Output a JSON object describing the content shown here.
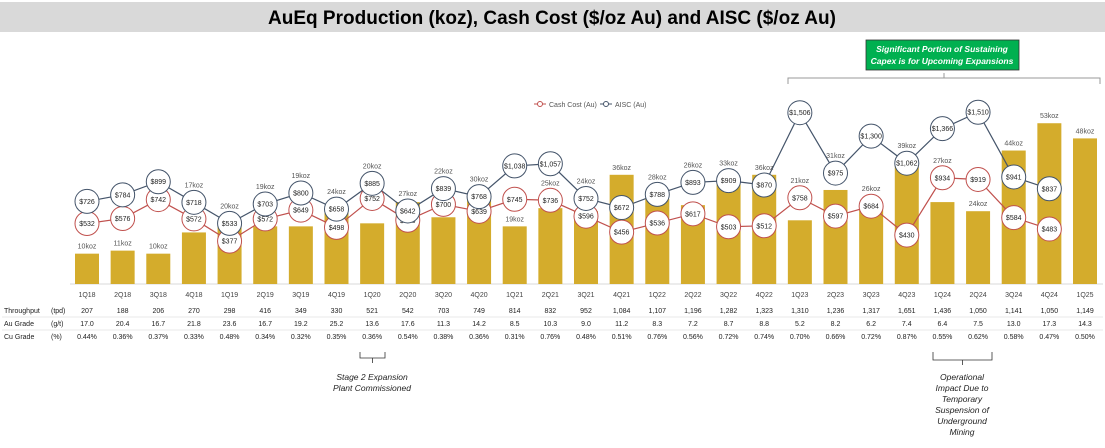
{
  "title": "AuEq Production (koz), Cash Cost ($/oz Au) and AISC ($/oz Au)",
  "colors": {
    "bar": "#D4AC2C",
    "cash_cost": "#C0504D",
    "aisc": "#44546A",
    "callout": "#00B050",
    "title_bg": "#D9D9D9"
  },
  "callout_top": {
    "line1": "Significant Portion of Sustaining",
    "line2": "Capex is for Upcoming Expansions"
  },
  "annotation_stage2": {
    "line1": "Stage 2 Expansion",
    "line2": "Plant Commissioned"
  },
  "annotation_operational": {
    "lines": [
      "Operational",
      "Impact Due to",
      "Temporary",
      "Suspension of",
      "Underground",
      "Mining"
    ]
  },
  "table": {
    "rows": [
      {
        "label": "Throughput",
        "unit": "(tpd)",
        "values": [
          "207",
          "188",
          "206",
          "270",
          "298",
          "416",
          "349",
          "330",
          "521",
          "542",
          "703",
          "749",
          "814",
          "832",
          "952",
          "1,084",
          "1,107",
          "1,196",
          "1,282",
          "1,323",
          "1,310",
          "1,236",
          "1,317",
          "1,651",
          "1,436",
          "1,050",
          "1,141",
          "1,050",
          "1,149"
        ]
      },
      {
        "label": "Au Grade",
        "unit": "(g/t)",
        "values": [
          "17.0",
          "20.4",
          "16.7",
          "21.8",
          "23.6",
          "16.7",
          "19.2",
          "25.2",
          "13.6",
          "17.6",
          "11.3",
          "14.2",
          "8.5",
          "10.3",
          "9.0",
          "11.2",
          "8.3",
          "7.2",
          "8.7",
          "8.8",
          "5.2",
          "8.2",
          "6.2",
          "7.4",
          "6.4",
          "7.5",
          "13.0",
          "17.3",
          "14.3"
        ]
      },
      {
        "label": "Cu Grade",
        "unit": "(%)",
        "values": [
          "0.44%",
          "0.36%",
          "0.37%",
          "0.33%",
          "0.48%",
          "0.34%",
          "0.32%",
          "0.35%",
          "0.36%",
          "0.54%",
          "0.38%",
          "0.36%",
          "0.31%",
          "0.76%",
          "0.48%",
          "0.51%",
          "0.76%",
          "0.56%",
          "0.72%",
          "0.74%",
          "0.70%",
          "0.66%",
          "0.72%",
          "0.87%",
          "0.55%",
          "0.62%",
          "0.58%",
          "0.47%",
          "0.50%"
        ]
      }
    ]
  },
  "chart_data": {
    "type": "bar+line",
    "title": "AuEq Production (koz), Cash Cost ($/oz Au) and AISC ($/oz Au)",
    "categories": [
      "1Q18",
      "2Q18",
      "3Q18",
      "4Q18",
      "1Q19",
      "2Q19",
      "3Q19",
      "4Q19",
      "1Q20",
      "2Q20",
      "3Q20",
      "4Q20",
      "1Q21",
      "2Q21",
      "3Q21",
      "4Q21",
      "1Q22",
      "2Q22",
      "3Q22",
      "4Q22",
      "1Q23",
      "2Q23",
      "3Q23",
      "4Q23",
      "1Q24",
      "2Q24",
      "3Q24",
      "4Q24",
      "1Q25"
    ],
    "bar_series": {
      "unit": "koz",
      "values": [
        10,
        11,
        10,
        17,
        20,
        19,
        19,
        24,
        20,
        27,
        22,
        30,
        19,
        25,
        24,
        36,
        28,
        26,
        33,
        36,
        21,
        31,
        26,
        39,
        27,
        24,
        44,
        53,
        48
      ]
    },
    "line_series": [
      {
        "name": "Cash Cost (Au)",
        "values": [
          532,
          576,
          742,
          572,
          377,
          572,
          649,
          498,
          752,
          560,
          700,
          639,
          745,
          736,
          596,
          456,
          536,
          617,
          503,
          512,
          758,
          597,
          684,
          430,
          934,
          919,
          584,
          483,
          null
        ]
      },
      {
        "name": "AISC (Au)",
        "values": [
          726,
          784,
          899,
          718,
          533,
          703,
          800,
          658,
          885,
          642,
          839,
          768,
          1038,
          1057,
          752,
          672,
          788,
          893,
          909,
          870,
          1506,
          975,
          1300,
          1062,
          1366,
          1510,
          941,
          837,
          null
        ]
      }
    ],
    "bar_ylim": [
      0,
      60
    ],
    "line_ylim": [
      0,
      1600
    ],
    "grid": false,
    "legend_position": "top-center"
  }
}
